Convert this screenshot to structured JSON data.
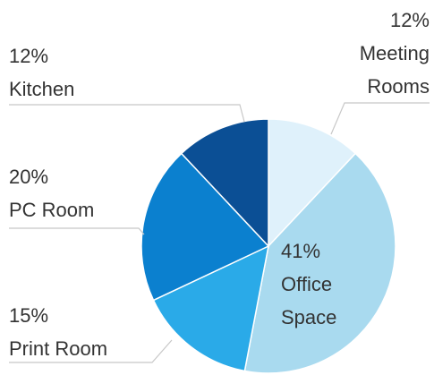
{
  "chart_data": {
    "type": "pie",
    "categories": [
      "Meeting Rooms",
      "Office Space",
      "Print Room",
      "PC Room",
      "Kitchen"
    ],
    "values": [
      12,
      41,
      15,
      20,
      12
    ],
    "value_labels": [
      "12%",
      "41%",
      "15%",
      "20%",
      "12%"
    ],
    "colors": [
      "#dff1fb",
      "#a9daef",
      "#2aaae8",
      "#0b80cf",
      "#0b4f95"
    ]
  }
}
